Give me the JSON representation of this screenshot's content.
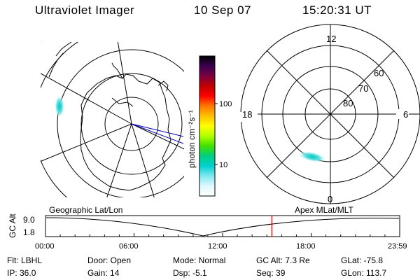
{
  "header": {
    "title": "Ultraviolet Imager",
    "date": "10 Sep 07",
    "time": "15:20:31 UT"
  },
  "geo_panel": {
    "label": "Geographic Lat/Lon"
  },
  "apex_panel": {
    "label": "Apex MLat/MLT",
    "mlt_labels": {
      "top": "12",
      "left": "18",
      "right": "6",
      "bottom": "0"
    },
    "lat_labels": [
      "60",
      "70",
      "80"
    ]
  },
  "colorbar": {
    "unit_label": "photon cm⁻²s⁻¹",
    "ticks": [
      "100",
      "10"
    ],
    "colors": [
      "#000000",
      "#3b0050",
      "#7a0040",
      "#c00000",
      "#ff0000",
      "#ff7700",
      "#ffc000",
      "#ffff00",
      "#b0ff00",
      "#40e000",
      "#00d080",
      "#00d0d0",
      "#80e8f0",
      "#e0f8ff",
      "#ffffff"
    ]
  },
  "timeline": {
    "ylabel": "GC Alt",
    "ymax": "9.0",
    "ymin": "1.8",
    "xticks": [
      "00:00",
      "06:00",
      "12:00",
      "18:00",
      "23:59"
    ],
    "current_time_fraction": 0.639
  },
  "info": {
    "filter": "Flt: LBHL",
    "door": "Door: Open",
    "mode": "Mode: Normal",
    "gc_alt": "GC Alt: 7.3 Re",
    "glat": "GLat: -75.8",
    "ip": "IP: 36.0",
    "gain": "Gain: 14",
    "dsp": "Dsp:   -5.1",
    "seq": "Seq: 39",
    "glon": "GLon: 113.7"
  },
  "accent_colors": {
    "marker": "#e00000",
    "meridian": "#0000aa"
  }
}
